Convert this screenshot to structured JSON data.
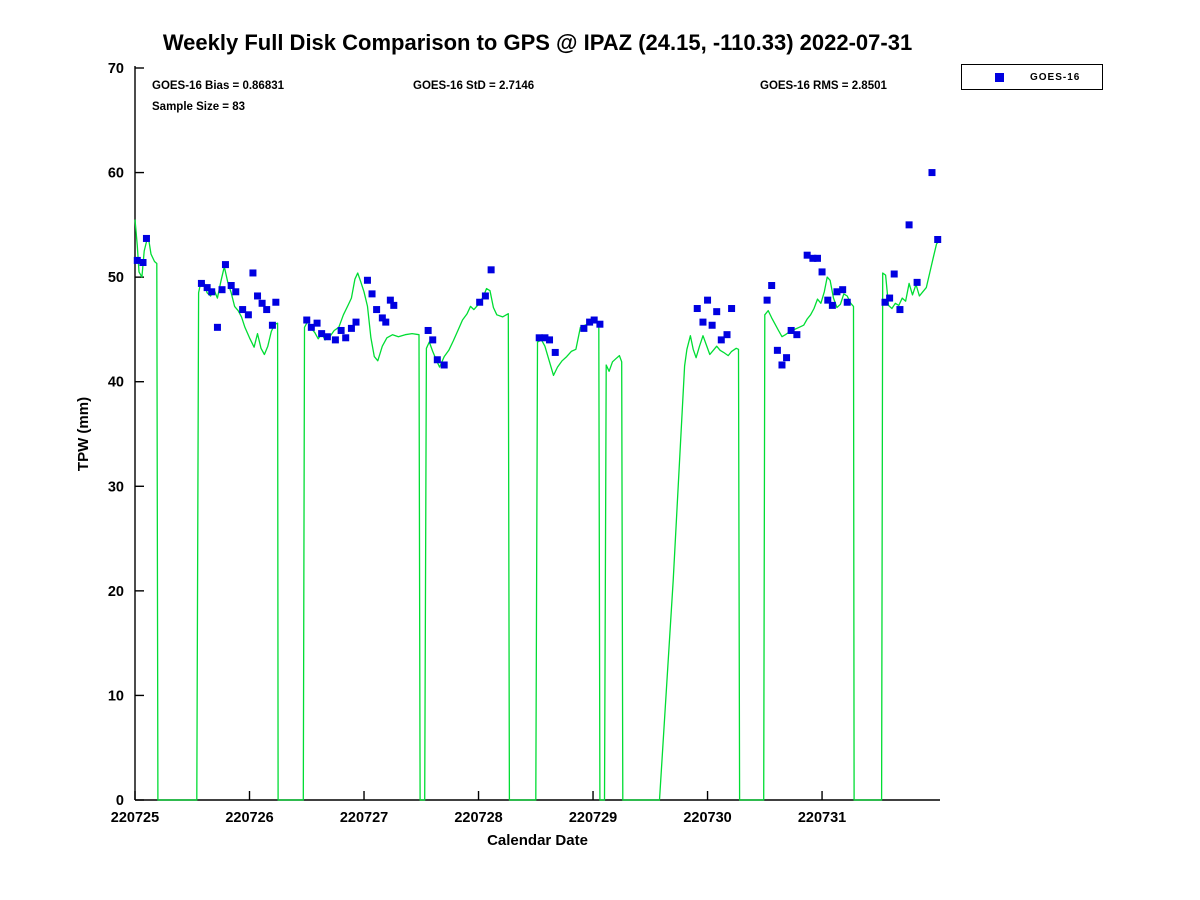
{
  "title": "Weekly Full Disk Comparison to GPS @ IPAZ (24.15, -110.33) 2022-07-31",
  "annotations": {
    "bias": "GOES-16 Bias = 0.86831",
    "std": "GOES-16 StD = 2.7146",
    "rms": "GOES-16 RMS = 2.8501",
    "sample_size": "Sample Size = 83"
  },
  "legend": {
    "position": "top-right",
    "entries": [
      {
        "label": "GOES-16",
        "marker": "square",
        "color": "#0000e0"
      }
    ]
  },
  "colors": {
    "gps_line": "#00dd33",
    "goes16_marker": "#0000e0",
    "axis": "#000000",
    "background": "#ffffff"
  },
  "chart_data": {
    "type": "line+scatter",
    "title": "Weekly Full Disk Comparison to GPS @ IPAZ (24.15, -110.33) 2022-07-31",
    "xlabel": "Calendar Date",
    "ylabel": "TPW (mm)",
    "x_unit": "days since 220725",
    "x_tick_labels": [
      "220725",
      "220726",
      "220727",
      "220728",
      "220729",
      "220730",
      "220731"
    ],
    "x_tick_positions": [
      0,
      1,
      2,
      3,
      4,
      5,
      6
    ],
    "y_ticks": [
      0,
      10,
      20,
      30,
      40,
      50,
      60,
      70
    ],
    "ylim": [
      0,
      70
    ],
    "xlim_days": [
      0,
      7.03
    ],
    "grid": false,
    "legend_position": "top-right",
    "series": [
      {
        "name": "GPS",
        "type": "line",
        "color": "#00dd33",
        "points": [
          [
            0.0,
            55.5
          ],
          [
            0.02,
            53.0
          ],
          [
            0.035,
            50.5
          ],
          [
            0.06,
            50.0
          ],
          [
            0.08,
            52.5
          ],
          [
            0.1,
            53.4
          ],
          [
            0.12,
            53.6
          ],
          [
            0.14,
            52.2
          ],
          [
            0.17,
            51.5
          ],
          [
            0.19,
            51.3
          ],
          [
            0.2,
            0
          ],
          [
            0.54,
            0
          ],
          [
            0.555,
            48.5
          ],
          [
            0.57,
            49.3
          ],
          [
            0.6,
            49.6
          ],
          [
            0.63,
            48.5
          ],
          [
            0.66,
            48.2
          ],
          [
            0.69,
            48.8
          ],
          [
            0.72,
            48.0
          ],
          [
            0.75,
            49.6
          ],
          [
            0.78,
            51.0
          ],
          [
            0.81,
            49.5
          ],
          [
            0.84,
            48.5
          ],
          [
            0.87,
            47.2
          ],
          [
            0.9,
            46.8
          ],
          [
            0.93,
            46.2
          ],
          [
            0.96,
            45.2
          ],
          [
            1.0,
            44.2
          ],
          [
            1.04,
            43.3
          ],
          [
            1.07,
            44.6
          ],
          [
            1.1,
            43.2
          ],
          [
            1.13,
            42.6
          ],
          [
            1.16,
            43.4
          ],
          [
            1.19,
            44.8
          ],
          [
            1.22,
            45.5
          ],
          [
            1.245,
            45.6
          ],
          [
            1.25,
            0
          ],
          [
            1.47,
            0
          ],
          [
            1.48,
            45.2
          ],
          [
            1.51,
            45.8
          ],
          [
            1.54,
            45.1
          ],
          [
            1.57,
            44.7
          ],
          [
            1.6,
            44.1
          ],
          [
            1.63,
            44.6
          ],
          [
            1.66,
            44.0
          ],
          [
            1.7,
            44.3
          ],
          [
            1.74,
            44.9
          ],
          [
            1.78,
            45.2
          ],
          [
            1.82,
            46.4
          ],
          [
            1.86,
            47.3
          ],
          [
            1.89,
            48.0
          ],
          [
            1.92,
            49.8
          ],
          [
            1.945,
            50.4
          ],
          [
            1.97,
            49.6
          ],
          [
            2.0,
            48.6
          ],
          [
            2.03,
            47.2
          ],
          [
            2.06,
            44.2
          ],
          [
            2.09,
            42.4
          ],
          [
            2.12,
            42.0
          ],
          [
            2.16,
            43.4
          ],
          [
            2.2,
            44.2
          ],
          [
            2.25,
            44.5
          ],
          [
            2.3,
            44.3
          ],
          [
            2.36,
            44.5
          ],
          [
            2.42,
            44.6
          ],
          [
            2.48,
            44.5
          ],
          [
            2.49,
            0
          ],
          [
            2.53,
            0
          ],
          [
            2.545,
            43.2
          ],
          [
            2.57,
            43.8
          ],
          [
            2.6,
            42.9
          ],
          [
            2.63,
            42.1
          ],
          [
            2.66,
            41.4
          ],
          [
            2.7,
            42.4
          ],
          [
            2.74,
            43.0
          ],
          [
            2.78,
            43.9
          ],
          [
            2.82,
            44.9
          ],
          [
            2.86,
            45.9
          ],
          [
            2.9,
            46.5
          ],
          [
            2.93,
            47.2
          ],
          [
            2.96,
            46.9
          ],
          [
            3.0,
            47.4
          ],
          [
            3.04,
            48.1
          ],
          [
            3.07,
            48.9
          ],
          [
            3.1,
            48.7
          ],
          [
            3.13,
            47.1
          ],
          [
            3.16,
            46.4
          ],
          [
            3.21,
            46.2
          ],
          [
            3.26,
            46.5
          ],
          [
            3.27,
            0
          ],
          [
            3.5,
            0
          ],
          [
            3.515,
            43.8
          ],
          [
            3.55,
            44.0
          ],
          [
            3.58,
            43.4
          ],
          [
            3.62,
            41.9
          ],
          [
            3.655,
            40.6
          ],
          [
            3.69,
            41.4
          ],
          [
            3.73,
            42.0
          ],
          [
            3.77,
            42.4
          ],
          [
            3.81,
            42.9
          ],
          [
            3.85,
            43.1
          ],
          [
            3.89,
            45.2
          ],
          [
            3.93,
            45.4
          ],
          [
            3.97,
            45.6
          ],
          [
            4.02,
            45.8
          ],
          [
            4.05,
            45.7
          ],
          [
            4.06,
            0
          ],
          [
            4.1,
            0
          ],
          [
            4.115,
            41.6
          ],
          [
            4.14,
            41.0
          ],
          [
            4.17,
            41.9
          ],
          [
            4.2,
            42.2
          ],
          [
            4.23,
            42.5
          ],
          [
            4.25,
            41.9
          ],
          [
            4.26,
            0
          ],
          [
            4.58,
            0
          ],
          [
            4.7,
            21.0
          ],
          [
            4.8,
            41.5
          ],
          [
            4.82,
            43.1
          ],
          [
            4.85,
            44.4
          ],
          [
            4.875,
            43.1
          ],
          [
            4.9,
            42.3
          ],
          [
            4.93,
            43.4
          ],
          [
            4.96,
            44.4
          ],
          [
            4.99,
            43.5
          ],
          [
            5.02,
            42.6
          ],
          [
            5.05,
            43.0
          ],
          [
            5.08,
            43.4
          ],
          [
            5.11,
            43.0
          ],
          [
            5.14,
            42.8
          ],
          [
            5.18,
            42.5
          ],
          [
            5.21,
            42.9
          ],
          [
            5.25,
            43.2
          ],
          [
            5.27,
            43.1
          ],
          [
            5.28,
            0
          ],
          [
            5.49,
            0
          ],
          [
            5.5,
            46.4
          ],
          [
            5.53,
            46.8
          ],
          [
            5.56,
            46.1
          ],
          [
            5.59,
            45.5
          ],
          [
            5.62,
            44.9
          ],
          [
            5.65,
            44.3
          ],
          [
            5.68,
            44.5
          ],
          [
            5.72,
            44.8
          ],
          [
            5.76,
            45.0
          ],
          [
            5.8,
            45.2
          ],
          [
            5.84,
            45.4
          ],
          [
            5.87,
            46.0
          ],
          [
            5.9,
            46.4
          ],
          [
            5.93,
            47.0
          ],
          [
            5.96,
            47.9
          ],
          [
            5.99,
            47.5
          ],
          [
            6.02,
            48.6
          ],
          [
            6.045,
            50.0
          ],
          [
            6.07,
            49.7
          ],
          [
            6.1,
            48.0
          ],
          [
            6.13,
            47.1
          ],
          [
            6.16,
            47.4
          ],
          [
            6.19,
            48.4
          ],
          [
            6.22,
            48.2
          ],
          [
            6.25,
            47.5
          ],
          [
            6.275,
            47.2
          ],
          [
            6.28,
            0
          ],
          [
            6.52,
            0
          ],
          [
            6.53,
            50.4
          ],
          [
            6.555,
            50.2
          ],
          [
            6.58,
            47.3
          ],
          [
            6.61,
            47.0
          ],
          [
            6.64,
            47.5
          ],
          [
            6.67,
            47.3
          ],
          [
            6.7,
            48.0
          ],
          [
            6.73,
            47.7
          ],
          [
            6.76,
            49.4
          ],
          [
            6.79,
            48.3
          ],
          [
            6.82,
            49.3
          ],
          [
            6.85,
            48.2
          ],
          [
            6.88,
            48.6
          ],
          [
            6.91,
            49.0
          ],
          [
            6.94,
            50.4
          ],
          [
            6.97,
            51.8
          ],
          [
            7.0,
            53.2
          ],
          [
            7.02,
            53.4
          ]
        ]
      },
      {
        "name": "GOES-16",
        "type": "scatter",
        "marker": "square",
        "color": "#0000e0",
        "points": [
          [
            0.02,
            51.6
          ],
          [
            0.07,
            51.4
          ],
          [
            0.1,
            53.7
          ],
          [
            0.58,
            49.4
          ],
          [
            0.63,
            49.0
          ],
          [
            0.67,
            48.6
          ],
          [
            0.72,
            45.2
          ],
          [
            0.76,
            48.8
          ],
          [
            0.79,
            51.2
          ],
          [
            0.84,
            49.2
          ],
          [
            0.88,
            48.6
          ],
          [
            0.94,
            46.9
          ],
          [
            0.99,
            46.4
          ],
          [
            1.03,
            50.4
          ],
          [
            1.07,
            48.2
          ],
          [
            1.11,
            47.5
          ],
          [
            1.15,
            46.9
          ],
          [
            1.2,
            45.4
          ],
          [
            1.23,
            47.6
          ],
          [
            1.5,
            45.9
          ],
          [
            1.54,
            45.2
          ],
          [
            1.59,
            45.6
          ],
          [
            1.63,
            44.6
          ],
          [
            1.68,
            44.3
          ],
          [
            1.75,
            44.0
          ],
          [
            1.8,
            44.9
          ],
          [
            1.84,
            44.2
          ],
          [
            1.89,
            45.1
          ],
          [
            1.93,
            45.7
          ],
          [
            2.03,
            49.7
          ],
          [
            2.07,
            48.4
          ],
          [
            2.11,
            46.9
          ],
          [
            2.16,
            46.1
          ],
          [
            2.19,
            45.7
          ],
          [
            2.23,
            47.8
          ],
          [
            2.26,
            47.3
          ],
          [
            2.56,
            44.9
          ],
          [
            2.6,
            44.0
          ],
          [
            2.64,
            42.1
          ],
          [
            2.7,
            41.6
          ],
          [
            3.01,
            47.6
          ],
          [
            3.06,
            48.2
          ],
          [
            3.11,
            50.7
          ],
          [
            3.53,
            44.2
          ],
          [
            3.58,
            44.2
          ],
          [
            3.62,
            44.0
          ],
          [
            3.67,
            42.8
          ],
          [
            3.92,
            45.1
          ],
          [
            3.97,
            45.7
          ],
          [
            4.01,
            45.9
          ],
          [
            4.06,
            45.5
          ],
          [
            4.91,
            47.0
          ],
          [
            4.96,
            45.7
          ],
          [
            5.0,
            47.8
          ],
          [
            5.04,
            45.4
          ],
          [
            5.08,
            46.7
          ],
          [
            5.12,
            44.0
          ],
          [
            5.17,
            44.5
          ],
          [
            5.21,
            47.0
          ],
          [
            5.52,
            47.8
          ],
          [
            5.56,
            49.2
          ],
          [
            5.61,
            43.0
          ],
          [
            5.65,
            41.6
          ],
          [
            5.69,
            42.3
          ],
          [
            5.73,
            44.9
          ],
          [
            5.78,
            44.5
          ],
          [
            5.87,
            52.1
          ],
          [
            5.92,
            51.8
          ],
          [
            5.96,
            51.8
          ],
          [
            6.0,
            50.5
          ],
          [
            6.05,
            47.8
          ],
          [
            6.09,
            47.3
          ],
          [
            6.13,
            48.6
          ],
          [
            6.18,
            48.8
          ],
          [
            6.22,
            47.6
          ],
          [
            6.55,
            47.6
          ],
          [
            6.59,
            48.0
          ],
          [
            6.63,
            50.3
          ],
          [
            6.68,
            46.9
          ],
          [
            6.76,
            55.0
          ],
          [
            6.83,
            49.5
          ],
          [
            6.96,
            60.0
          ],
          [
            7.01,
            53.6
          ]
        ]
      }
    ]
  }
}
